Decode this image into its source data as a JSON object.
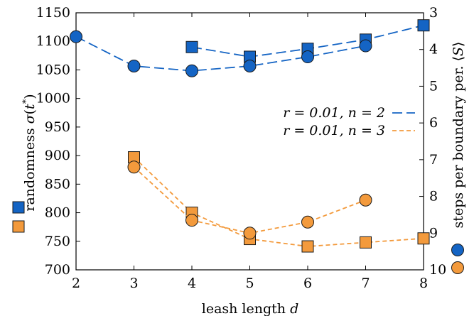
{
  "chart_data": {
    "type": "line",
    "xlabel": "leash length d",
    "ylabel_left": "randomness σ(t*)",
    "ylabel_right": "steps per boundary per. ⟨S⟩",
    "xlim": [
      2,
      8
    ],
    "ylim_left": [
      700,
      1150
    ],
    "ylim_right": [
      3,
      10
    ],
    "right_axis_inverted": true,
    "x_ticks": [
      "2",
      "3",
      "4",
      "5",
      "6",
      "7",
      "8"
    ],
    "y_ticks_left": [
      "700",
      "750",
      "800",
      "850",
      "900",
      "950",
      "1000",
      "1050",
      "1100",
      "1150"
    ],
    "y_ticks_right": [
      "3",
      "4",
      "5",
      "6",
      "7",
      "8",
      "9",
      "10"
    ],
    "grid": false,
    "legend_position": "middle-right",
    "legend": [
      {
        "label": "r = 0.01, n = 2",
        "color": "#1464c4",
        "dash": "long-dash"
      },
      {
        "label": "r = 0.01, n = 3",
        "color": "#f39a3c",
        "dash": "short-dash"
      }
    ],
    "series": [
      {
        "name": "r = 0.01, n = 2",
        "marker": "square",
        "axis": "left",
        "color": "#1464c4",
        "x": [
          4,
          5,
          6,
          7,
          8
        ],
        "values": [
          1090,
          1073,
          1087,
          1103,
          1128
        ]
      },
      {
        "name": "r = 0.01, n = 2",
        "marker": "circle",
        "axis": "right",
        "color": "#1464c4",
        "x": [
          2,
          3,
          4,
          5,
          6,
          7
        ],
        "values": [
          3.65,
          4.45,
          4.58,
          4.45,
          4.2,
          3.9
        ]
      },
      {
        "name": "r = 0.01, n = 3",
        "marker": "square",
        "axis": "left",
        "color": "#f39a3c",
        "x": [
          3,
          4,
          5,
          6,
          7,
          8
        ],
        "values": [
          897,
          800,
          754,
          741,
          748,
          755
        ]
      },
      {
        "name": "r = 0.01, n = 3",
        "marker": "circle",
        "axis": "right",
        "color": "#f39a3c",
        "x": [
          3,
          4,
          5,
          6,
          7
        ],
        "values": [
          7.2,
          8.65,
          9.0,
          8.7,
          8.1
        ]
      }
    ]
  }
}
